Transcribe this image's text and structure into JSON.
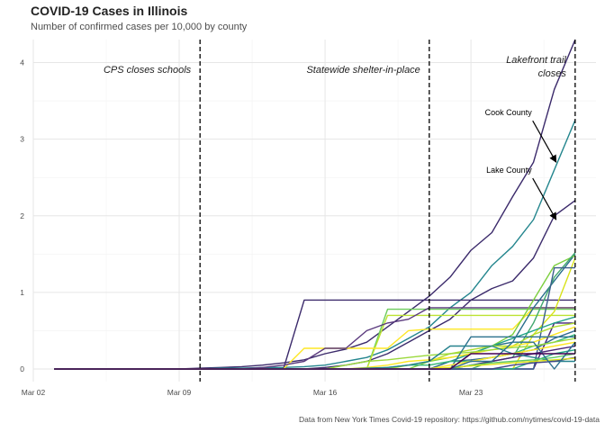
{
  "chart_data": {
    "type": "line",
    "title": "COVID-19 Cases in Illinois",
    "subtitle": "Number of confirmed cases per 10,000 by county",
    "caption": "Data from New York Times Covid-19 repository: https://github.com/nytimes/covid-19-data",
    "xlabel": "",
    "ylabel": "",
    "x": [
      "2020-03-03",
      "2020-03-04",
      "2020-03-05",
      "2020-03-06",
      "2020-03-07",
      "2020-03-08",
      "2020-03-09",
      "2020-03-10",
      "2020-03-11",
      "2020-03-12",
      "2020-03-13",
      "2020-03-14",
      "2020-03-15",
      "2020-03-16",
      "2020-03-17",
      "2020-03-18",
      "2020-03-19",
      "2020-03-20",
      "2020-03-21",
      "2020-03-22",
      "2020-03-23",
      "2020-03-24",
      "2020-03-25",
      "2020-03-26",
      "2020-03-27",
      "2020-03-28"
    ],
    "xlim": [
      "2020-03-02",
      "2020-03-29"
    ],
    "ylim": [
      0,
      4.3
    ],
    "x_ticks": [
      {
        "date": "2020-03-02",
        "label": "Mar 02"
      },
      {
        "date": "2020-03-09",
        "label": "Mar 09"
      },
      {
        "date": "2020-03-16",
        "label": "Mar 16"
      },
      {
        "date": "2020-03-23",
        "label": "Mar 23"
      }
    ],
    "y_ticks": [
      0,
      1,
      2,
      3,
      4
    ],
    "grid": true,
    "legend": "none",
    "events": [
      {
        "date": "2020-03-10",
        "label": "CPS closes schools"
      },
      {
        "date": "2020-03-21",
        "label": "Statewide shelter-in-place"
      },
      {
        "date": "2020-03-28",
        "label": "Lakefront trail closes",
        "lines": [
          "Lakefront trail",
          "closes"
        ]
      }
    ],
    "annotations": [
      {
        "label": "Cook County",
        "date": "2020-03-27",
        "value": 2.7
      },
      {
        "label": "Lake County",
        "date": "2020-03-27",
        "value": 1.95
      }
    ],
    "series": [
      {
        "color": "#3b2a6b",
        "start": "2020-03-03",
        "values": [
          0,
          0,
          0,
          0,
          0,
          0,
          0,
          0.01,
          0.02,
          0.03,
          0.05,
          0.08,
          0.12,
          0.2,
          0.26,
          0.35,
          0.55,
          0.75,
          0.95,
          1.2,
          1.55,
          1.78,
          2.25,
          2.7,
          3.65,
          4.3
        ]
      },
      {
        "color": "#24868e",
        "start": "2020-03-03",
        "values": [
          0,
          0,
          0,
          0,
          0,
          0,
          0,
          0,
          0.01,
          0.01,
          0.02,
          0.02,
          0.03,
          0.05,
          0.1,
          0.15,
          0.25,
          0.4,
          0.55,
          0.8,
          1.0,
          1.35,
          1.6,
          1.95,
          2.6,
          3.25
        ]
      },
      {
        "color": "#3b2a6b",
        "start": "2020-03-03",
        "values": [
          0,
          0,
          0,
          0,
          0,
          0,
          0,
          0,
          0,
          0,
          0,
          0,
          0,
          0.02,
          0.05,
          0.1,
          0.2,
          0.35,
          0.5,
          0.65,
          0.9,
          1.05,
          1.15,
          1.45,
          2.0,
          2.2
        ]
      },
      {
        "color": "#3b2a6b",
        "start": "2020-03-03",
        "values": [
          0,
          0,
          0,
          0,
          0,
          0,
          0,
          0,
          0,
          0,
          0,
          0,
          0.9,
          0.9,
          0.9,
          0.9,
          0.9,
          0.9,
          0.9,
          0.9,
          0.9,
          0.9,
          0.9,
          0.9,
          0.9,
          0.9
        ]
      },
      {
        "color": "#6ecc5c",
        "start": "2020-03-03",
        "values": [
          0,
          0,
          0,
          0,
          0,
          0,
          0,
          0,
          0,
          0,
          0,
          0,
          0,
          0,
          0,
          0,
          0.78,
          0.78,
          0.78,
          0.78,
          0.78,
          0.78,
          0.78,
          0.78,
          0.78,
          0.78
        ]
      },
      {
        "color": "#bde332",
        "start": "2020-03-03",
        "values": [
          0,
          0,
          0,
          0,
          0,
          0,
          0,
          0,
          0,
          0,
          0,
          0,
          0,
          0,
          0,
          0,
          0.7,
          0.7,
          0.7,
          0.7,
          0.7,
          0.7,
          0.7,
          0.7,
          0.7,
          0.7
        ]
      },
      {
        "color": "#fde725",
        "start": "2020-03-03",
        "values": [
          0,
          0,
          0,
          0,
          0,
          0,
          0,
          0,
          0,
          0,
          0,
          0,
          0.27,
          0.27,
          0.27,
          0.27,
          0.27,
          0.5,
          0.52,
          0.52,
          0.52,
          0.52,
          0.52,
          0.8,
          0.8,
          0.8
        ]
      },
      {
        "color": "#5b3a7e",
        "start": "2020-03-03",
        "values": [
          0,
          0,
          0,
          0,
          0,
          0,
          0,
          0,
          0,
          0,
          0.02,
          0.05,
          0.1,
          0.27,
          0.27,
          0.5,
          0.6,
          0.65,
          0.8,
          0.8,
          0.8,
          0.8,
          0.8,
          0.8,
          0.8,
          0.8
        ]
      },
      {
        "color": "#2a6f8c",
        "start": "2020-03-03",
        "values": [
          0,
          0,
          0,
          0,
          0,
          0,
          0,
          0,
          0,
          0,
          0,
          0,
          0,
          0,
          0,
          0,
          0,
          0,
          0,
          0,
          0.2,
          0.3,
          0.35,
          0.8,
          1.15,
          1.5
        ]
      },
      {
        "color": "#7ccf3e",
        "start": "2020-03-03",
        "values": [
          0,
          0,
          0,
          0,
          0,
          0,
          0,
          0,
          0,
          0,
          0,
          0,
          0,
          0,
          0,
          0,
          0,
          0,
          0.1,
          0.15,
          0.2,
          0.3,
          0.45,
          0.9,
          1.35,
          1.48
        ]
      },
      {
        "color": "#43a96f",
        "start": "2020-03-03",
        "values": [
          0,
          0,
          0,
          0,
          0,
          0,
          0,
          0,
          0,
          0,
          0,
          0,
          0,
          0,
          0,
          0,
          0,
          0,
          0,
          0,
          0,
          0.1,
          0.15,
          0.6,
          1.2,
          1.52
        ]
      },
      {
        "color": "#d8e219",
        "start": "2020-03-03",
        "values": [
          0,
          0,
          0,
          0,
          0,
          0,
          0,
          0,
          0,
          0,
          0,
          0,
          0,
          0,
          0,
          0,
          0,
          0,
          0,
          0,
          0,
          0,
          0,
          0.45,
          0.75,
          1.45
        ]
      },
      {
        "color": "#45237a",
        "start": "2020-03-03",
        "values": [
          0,
          0,
          0,
          0,
          0,
          0,
          0,
          0,
          0,
          0,
          0,
          0,
          0,
          0,
          0,
          0,
          0,
          0,
          0,
          0,
          0,
          0,
          0,
          0,
          0.6,
          0.6
        ]
      },
      {
        "color": "#3a5e8c",
        "start": "2020-03-03",
        "values": [
          0,
          0,
          0,
          0,
          0,
          0,
          0,
          0,
          0,
          0,
          0,
          0,
          0,
          0,
          0,
          0,
          0,
          0,
          0,
          0,
          0,
          0,
          0,
          0,
          1.32,
          1.32
        ]
      },
      {
        "color": "#1fa187",
        "start": "2020-03-03",
        "values": [
          0,
          0,
          0,
          0,
          0,
          0,
          0,
          0,
          0,
          0,
          0,
          0,
          0,
          0,
          0,
          0,
          0,
          0,
          0,
          0.1,
          0.2,
          0.3,
          0.4,
          0.5,
          0.6,
          0.68
        ]
      },
      {
        "color": "#b0dd2f",
        "start": "2020-03-03",
        "values": [
          0,
          0,
          0,
          0,
          0,
          0,
          0,
          0,
          0,
          0,
          0,
          0,
          0,
          0,
          0,
          0,
          0,
          0.05,
          0.1,
          0.2,
          0.25,
          0.3,
          0.3,
          0.45,
          0.55,
          0.6
        ]
      },
      {
        "color": "#fde725",
        "start": "2020-03-03",
        "values": [
          0,
          0,
          0,
          0,
          0,
          0,
          0,
          0,
          0,
          0,
          0,
          0,
          0,
          0,
          0,
          0.02,
          0.05,
          0.1,
          0.12,
          0.15,
          0.2,
          0.25,
          0.3,
          0.35,
          0.45,
          0.55
        ]
      },
      {
        "color": "#31688e",
        "start": "2020-03-03",
        "values": [
          0,
          0,
          0,
          0,
          0,
          0,
          0,
          0,
          0,
          0,
          0,
          0,
          0,
          0,
          0,
          0,
          0,
          0,
          0,
          0.1,
          0.12,
          0.15,
          0.2,
          0.25,
          0.4,
          0.5
        ]
      },
      {
        "color": "#35b779",
        "start": "2020-03-03",
        "values": [
          0,
          0,
          0,
          0,
          0,
          0,
          0,
          0,
          0,
          0,
          0,
          0,
          0,
          0,
          0,
          0,
          0.02,
          0.05,
          0.05,
          0.1,
          0.1,
          0.15,
          0.2,
          0.3,
          0.35,
          0.45
        ]
      },
      {
        "color": "#9bd93c",
        "start": "2020-03-03",
        "values": [
          0,
          0,
          0,
          0,
          0,
          0,
          0,
          0,
          0,
          0,
          0,
          0,
          0,
          0,
          0.05,
          0.1,
          0.12,
          0.15,
          0.18,
          0.2,
          0.22,
          0.25,
          0.28,
          0.3,
          0.35,
          0.4
        ]
      },
      {
        "color": "#2c728e",
        "start": "2020-03-03",
        "values": [
          0,
          0,
          0,
          0,
          0,
          0,
          0,
          0,
          0,
          0,
          0,
          0,
          0,
          0,
          0,
          0,
          0,
          0,
          0,
          0,
          0.42,
          0.42,
          0.42,
          0.42,
          0.42,
          0.42
        ]
      },
      {
        "color": "#fde725",
        "start": "2020-03-03",
        "values": [
          0,
          0,
          0,
          0,
          0,
          0,
          0,
          0,
          0,
          0,
          0,
          0,
          0,
          0,
          0,
          0,
          0,
          0,
          0,
          0.05,
          0.1,
          0.15,
          0.2,
          0.25,
          0.3,
          0.35
        ]
      },
      {
        "color": "#482475",
        "start": "2020-03-03",
        "values": [
          0,
          0,
          0,
          0,
          0,
          0,
          0,
          0,
          0,
          0,
          0,
          0,
          0,
          0,
          0,
          0,
          0,
          0,
          0,
          0,
          0.05,
          0.1,
          0.15,
          0.2,
          0.25,
          0.3
        ]
      },
      {
        "color": "#26828e",
        "start": "2020-03-03",
        "values": [
          0,
          0,
          0,
          0,
          0,
          0,
          0,
          0,
          0,
          0,
          0,
          0,
          0,
          0,
          0,
          0.01,
          0.02,
          0.05,
          0.1,
          0.3,
          0.3,
          0.3,
          0.2,
          0.15,
          0.1,
          0.1
        ]
      },
      {
        "color": "#22a884",
        "start": "2020-03-03",
        "values": [
          0,
          0,
          0,
          0,
          0,
          0,
          0,
          0,
          0,
          0,
          0,
          0,
          0,
          0,
          0,
          0,
          0,
          0,
          0,
          0,
          0,
          0,
          0,
          0.1,
          0.2,
          0.25
        ]
      },
      {
        "color": "#5ec962",
        "start": "2020-03-03",
        "values": [
          0,
          0,
          0,
          0,
          0,
          0,
          0,
          0,
          0,
          0,
          0,
          0,
          0,
          0,
          0,
          0,
          0,
          0,
          0,
          0,
          0.05,
          0.08,
          0.1,
          0.12,
          0.15,
          0.2
        ]
      },
      {
        "color": "#414487",
        "start": "2020-03-03",
        "values": [
          0,
          0,
          0,
          0,
          0,
          0,
          0,
          0,
          0,
          0,
          0,
          0,
          0,
          0,
          0,
          0,
          0,
          0,
          0,
          0,
          0,
          0,
          0.05,
          0.08,
          0.1,
          0.15
        ]
      },
      {
        "color": "#dde318",
        "start": "2020-03-03",
        "values": [
          0,
          0,
          0,
          0,
          0,
          0,
          0,
          0,
          0,
          0,
          0,
          0,
          0,
          0,
          0,
          0,
          0,
          0,
          0,
          0.02,
          0.04,
          0.06,
          0.08,
          0.1,
          0.12,
          0.14
        ]
      },
      {
        "color": "#2d708e",
        "start": "2020-03-03",
        "values": [
          0,
          0,
          0,
          0,
          0,
          0,
          0,
          0,
          0,
          0,
          0,
          0,
          0,
          0,
          0,
          0,
          0,
          0,
          0,
          0,
          0.1,
          0.1,
          0.35,
          0.35,
          0,
          0.35
        ]
      },
      {
        "color": "#440154",
        "start": "2020-03-03",
        "values": [
          0,
          0,
          0,
          0,
          0,
          0,
          0,
          0,
          0,
          0,
          0,
          0,
          0,
          0,
          0,
          0,
          0,
          0,
          0,
          0,
          0.2,
          0.2,
          0.2,
          0.2,
          0.2,
          0.2
        ]
      }
    ]
  }
}
